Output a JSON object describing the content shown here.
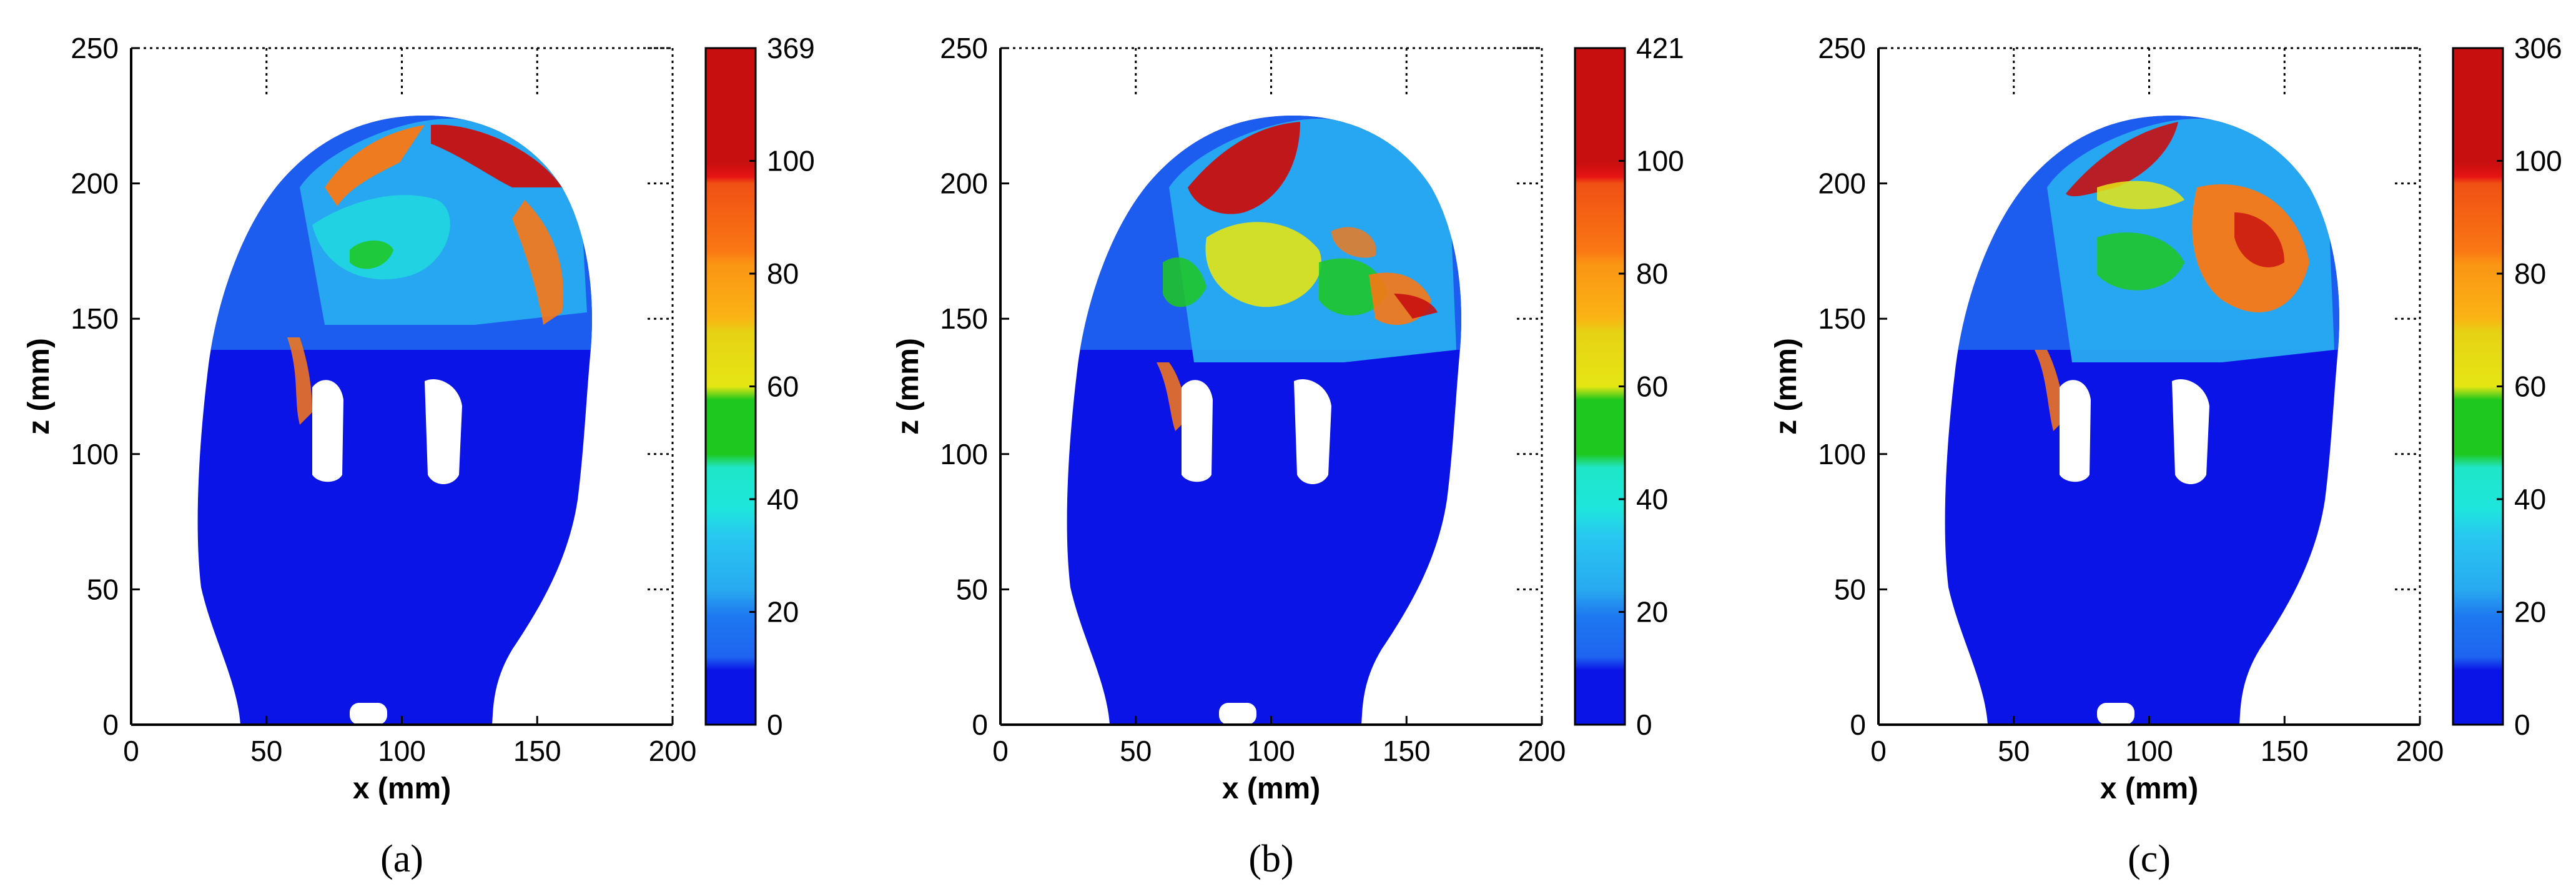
{
  "figure": {
    "panels": [
      {
        "label": "a",
        "colorbar_max_label": "369"
      },
      {
        "label": "b",
        "colorbar_max_label": "421"
      },
      {
        "label": "c",
        "colorbar_max_label": "306"
      }
    ]
  },
  "chart_data": [
    {
      "type": "heatmap",
      "panel_label": "(a)",
      "xlabel": "x (mm)",
      "ylabel": "z (mm)",
      "xlim": [
        0,
        200
      ],
      "ylim": [
        0,
        250
      ],
      "xticks": [
        0,
        50,
        100,
        150,
        200
      ],
      "yticks": [
        0,
        50,
        100,
        150,
        200,
        250
      ],
      "colorbar": {
        "ticks": [
          0,
          20,
          40,
          60,
          80,
          100
        ],
        "max": 369
      },
      "colors": {
        "blue": "#0a14e6",
        "mid_blue": "#1e64f0",
        "light_blue": "#28aaf0",
        "cyan": "#1ee6dc",
        "green": "#1ec81e",
        "yellow": "#e6e614",
        "orange": "#fa7814",
        "red": "#c80f0f"
      }
    },
    {
      "type": "heatmap",
      "panel_label": "(b)",
      "xlabel": "x (mm)",
      "ylabel": "z (mm)",
      "xlim": [
        0,
        200
      ],
      "ylim": [
        0,
        250
      ],
      "xticks": [
        0,
        50,
        100,
        150,
        200
      ],
      "yticks": [
        0,
        50,
        100,
        150,
        200,
        250
      ],
      "colorbar": {
        "ticks": [
          0,
          20,
          40,
          60,
          80,
          100
        ],
        "max": 421
      }
    },
    {
      "type": "heatmap",
      "panel_label": "(c)",
      "xlabel": "x (mm)",
      "ylabel": "z (mm)",
      "xlim": [
        0,
        200
      ],
      "ylim": [
        0,
        250
      ],
      "xticks": [
        0,
        50,
        100,
        150,
        200
      ],
      "yticks": [
        0,
        50,
        100,
        150,
        200,
        250
      ],
      "colorbar": {
        "ticks": [
          0,
          20,
          40,
          60,
          80,
          100
        ],
        "max": 306
      }
    }
  ]
}
